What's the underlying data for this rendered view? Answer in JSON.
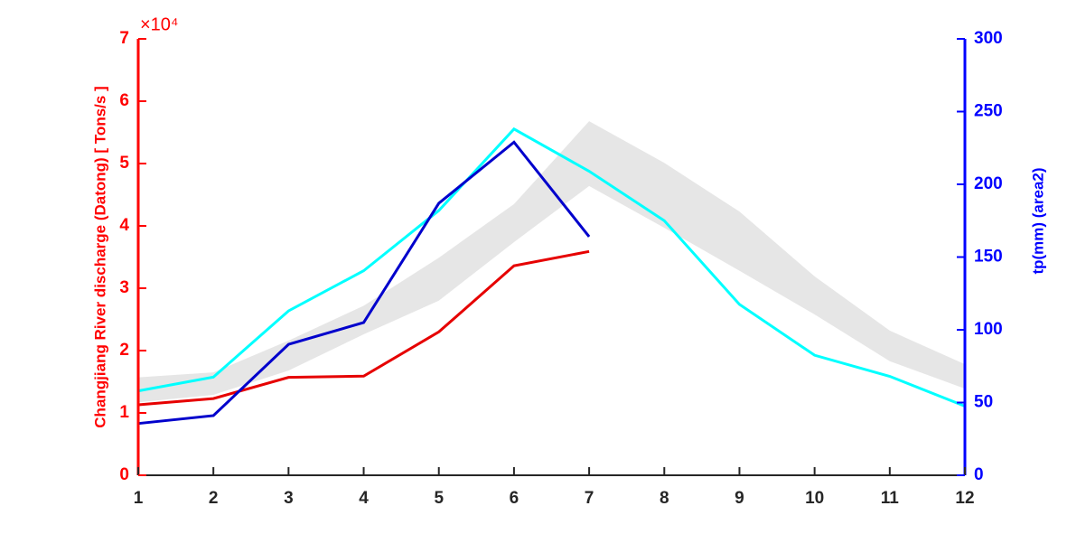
{
  "chart_data": {
    "type": "line",
    "x": [
      1,
      2,
      3,
      4,
      5,
      6,
      7,
      8,
      9,
      10,
      11,
      12
    ],
    "xlim": [
      1,
      12
    ],
    "xticks": [
      1,
      2,
      3,
      4,
      5,
      6,
      7,
      8,
      9,
      10,
      11,
      12
    ],
    "ylim": [
      0,
      7
    ],
    "yticks": [
      0,
      1,
      2,
      3,
      4,
      5,
      6,
      7
    ],
    "y2lim": [
      0,
      300
    ],
    "y2ticks": [
      0,
      50,
      100,
      150,
      200,
      250,
      300
    ],
    "y_multiplier": "×10⁴",
    "ylabel": "Changjiang River discharge (Datong) [ Tons/s ]",
    "y2label": "tp(mm) (area2)",
    "ycolor": "#ff0000",
    "y2color": "#0000ff",
    "band": {
      "color": "#e6e6e6",
      "lower": [
        1.17,
        1.29,
        1.68,
        2.26,
        2.8,
        3.74,
        4.64,
        3.97,
        3.28,
        2.58,
        1.83,
        1.39
      ],
      "upper": [
        1.57,
        1.65,
        2.16,
        2.72,
        3.49,
        4.35,
        5.68,
        5.01,
        4.23,
        3.19,
        2.32,
        1.78
      ]
    },
    "series": [
      {
        "color": "#00ffff",
        "axis": "y2",
        "values": [
          58,
          67.5,
          113,
          140.6,
          182,
          238,
          209,
          175,
          117.5,
          82.5,
          68,
          47.5
        ]
      },
      {
        "color": "#e60000",
        "values": [
          1.13,
          1.23,
          1.57,
          1.59,
          2.3,
          3.36,
          3.59,
          null,
          null,
          null,
          null,
          null
        ]
      },
      {
        "color": "#0000cc",
        "axis": "y2",
        "values": [
          35.6,
          41,
          90,
          105,
          187,
          229,
          164,
          null,
          null,
          null,
          null,
          null
        ]
      }
    ]
  }
}
